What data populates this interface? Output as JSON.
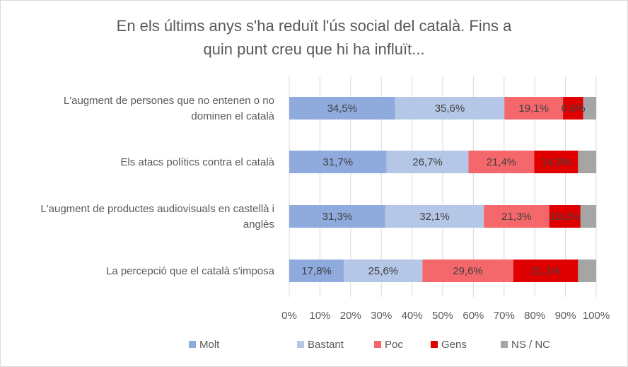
{
  "chart_data": {
    "type": "bar",
    "orientation": "horizontal",
    "stacked": true,
    "percent_stacked": true,
    "title_lines": [
      "En els últims anys s'ha reduït l'ús social del català. Fins a",
      "quin punt creu que hi ha influït..."
    ],
    "categories": [
      [
        "L'augment de persones que no entenen o no",
        "dominen el català"
      ],
      [
        "Els atacs polítics contra el català"
      ],
      [
        "L'augment de productes audiovisuals en castellà i",
        "anglès"
      ],
      [
        "La percepció que el català s'imposa"
      ]
    ],
    "series": [
      {
        "name": "Molt",
        "color": "#8faadc",
        "values": [
          34.5,
          31.7,
          31.3,
          17.8
        ],
        "labels": [
          "34,5%",
          "31,7%",
          "31,3%",
          "17,8%"
        ]
      },
      {
        "name": "Bastant",
        "color": "#b4c7e7",
        "values": [
          35.6,
          26.7,
          32.1,
          25.6
        ],
        "labels": [
          "35,6%",
          "26,7%",
          "32,1%",
          "25,6%"
        ]
      },
      {
        "name": "Poc",
        "color": "#f4676a",
        "values": [
          19.1,
          21.4,
          21.3,
          29.6
        ],
        "labels": [
          "19,1%",
          "21,4%",
          "21,3%",
          "29,6%"
        ]
      },
      {
        "name": "Gens",
        "color": "#e00000",
        "values": [
          6.6,
          14.3,
          10.2,
          21.1
        ],
        "labels": [
          "6,6%",
          "14,3%",
          "10,2%",
          "21,1%"
        ]
      },
      {
        "name": "NS / NC",
        "color": "#a5a5a5",
        "values": [
          4.2,
          5.9,
          5.1,
          5.9
        ],
        "labels": [
          "",
          "",
          "",
          ""
        ]
      }
    ],
    "x_ticks": [
      "0%",
      "10%",
      "20%",
      "30%",
      "40%",
      "50%",
      "60%",
      "70%",
      "80%",
      "90%",
      "100%"
    ],
    "xlim": [
      0,
      100
    ],
    "grid": true,
    "legend_position": "bottom"
  }
}
